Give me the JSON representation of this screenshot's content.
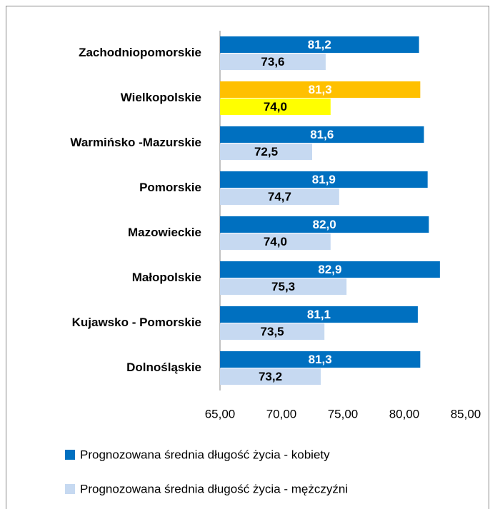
{
  "chart_data": {
    "type": "bar",
    "orientation": "horizontal",
    "categories": [
      "Zachodniopomorskie",
      "Wielkopolskie",
      "Warmińsko -Mazurskie",
      "Pomorskie",
      "Mazowieckie",
      "Małopolskie",
      "Kujawsko - Pomorskie",
      "Dolnośląskie"
    ],
    "series": [
      {
        "name": "Prognozowana średnia długość życia - kobiety",
        "color": "#0070c0",
        "colors": [
          "#0070c0",
          "#ffc000",
          "#0070c0",
          "#0070c0",
          "#0070c0",
          "#0070c0",
          "#0070c0",
          "#0070c0"
        ],
        "values": [
          81.2,
          81.3,
          81.6,
          81.9,
          82.0,
          82.9,
          81.1,
          81.3
        ],
        "value_labels": [
          "81,2",
          "81,3",
          "81,6",
          "81,9",
          "82,0",
          "82,9",
          "81,1",
          "81,3"
        ]
      },
      {
        "name": "Prognozowana średnia długość życia - mężczyźni",
        "color": "#c6d9f1",
        "colors": [
          "#c6d9f1",
          "#ffff00",
          "#c6d9f1",
          "#c6d9f1",
          "#c6d9f1",
          "#c6d9f1",
          "#c6d9f1",
          "#c6d9f1"
        ],
        "values": [
          73.6,
          74.0,
          72.5,
          74.7,
          74.0,
          75.3,
          73.5,
          73.2
        ],
        "value_labels": [
          "73,6",
          "74,0",
          "72,5",
          "74,7",
          "74,0",
          "75,3",
          "73,5",
          "73,2"
        ]
      }
    ],
    "xlim": [
      65,
      85
    ],
    "xticks": [
      {
        "value": 65,
        "label": "65,00"
      },
      {
        "value": 70,
        "label": "70,00"
      },
      {
        "value": 75,
        "label": "75,00"
      },
      {
        "value": 80,
        "label": "80,00"
      },
      {
        "value": 85,
        "label": "85,00"
      }
    ],
    "legend": "bottom"
  }
}
